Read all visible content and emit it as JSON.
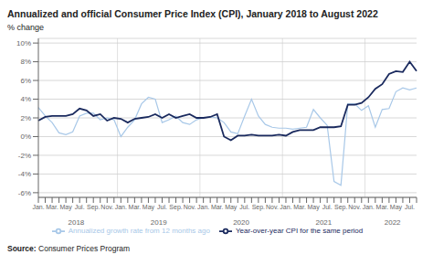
{
  "chart_data": {
    "type": "line",
    "title": "Annualized and official Consumer Price Index (CPI), January 2018 to August 2022",
    "ylabel": "% change",
    "source": "Source: Consumer Prices Program",
    "categories": [
      "Jan.",
      null,
      "Mar.",
      null,
      "May",
      null,
      "Jul.",
      null,
      "Sep.",
      null,
      "Nov.",
      null,
      "Jan.",
      null,
      "Mar.",
      null,
      "May",
      null,
      "Jul.",
      null,
      "Sep.",
      null,
      "Nov.",
      null,
      "Jan.",
      null,
      "Mar.",
      null,
      "May",
      null,
      "Jul.",
      null,
      "Sep.",
      null,
      "Nov.",
      null,
      "Jan.",
      null,
      "Mar.",
      null,
      "May",
      null,
      "Jul.",
      null,
      "Sep.",
      null,
      "Nov.",
      null,
      "Jan.",
      null,
      "Mar.",
      null,
      "May",
      null,
      "Jul.",
      null
    ],
    "series": [
      {
        "name": "Annualized growth rate from 12 months ago",
        "color": "#a8c8e8",
        "values": [
          3.1,
          2.2,
          1.5,
          0.4,
          0.2,
          0.5,
          2.2,
          2.5,
          2.5,
          1.8,
          2.0,
          1.8,
          0.0,
          1.0,
          1.8,
          3.5,
          4.2,
          4.0,
          1.5,
          1.8,
          2.2,
          1.5,
          1.3,
          1.8,
          2.0,
          2.1,
          2.0,
          1.5,
          0.5,
          0.3,
          2.2,
          4.0,
          2.2,
          1.3,
          1.0,
          0.9,
          0.9,
          0.8,
          0.9,
          1.0,
          2.9,
          2.0,
          1.2,
          -4.8,
          -5.2,
          3.5,
          3.5,
          2.8,
          3.3,
          1.0,
          2.9,
          3.0,
          4.8,
          5.2,
          5.0,
          5.2
        ]
      },
      {
        "name": "Year-over-year CPI for the same period",
        "color": "#1a2a5e",
        "values": [
          1.7,
          2.1,
          2.2,
          2.2,
          2.2,
          2.4,
          3.0,
          2.8,
          2.2,
          2.4,
          1.7,
          2.0,
          1.9,
          1.5,
          1.9,
          2.0,
          2.1,
          2.4,
          2.0,
          2.4,
          2.0,
          2.2,
          2.4,
          2.0,
          2.0,
          2.1,
          2.4,
          0.0,
          -0.4,
          0.1,
          0.1,
          0.2,
          0.1,
          0.1,
          0.1,
          0.2,
          0.1,
          0.5,
          0.7,
          0.7,
          0.7,
          1.0,
          1.0,
          1.0,
          1.1,
          3.4,
          3.4,
          3.6,
          4.2,
          5.1,
          5.6,
          6.7,
          7.0,
          6.9,
          8.0,
          7.0
        ]
      }
    ],
    "ylim": [
      -6.5,
      10.5
    ],
    "yticks": [
      {
        "value": -6,
        "label": "-6%"
      },
      {
        "value": -4,
        "label": "-4%"
      },
      {
        "value": -2,
        "label": "-2%"
      },
      {
        "value": 0,
        "label": "0%"
      },
      {
        "value": 2,
        "label": "2%"
      },
      {
        "value": 4,
        "label": "4%"
      },
      {
        "value": 6,
        "label": "6%"
      },
      {
        "value": 8,
        "label": "8%"
      },
      {
        "value": 10,
        "label": "10%"
      }
    ],
    "grid": true,
    "legend": "bottom",
    "annotations": [
      {
        "text": "2018",
        "x": 5.5
      },
      {
        "text": "2019",
        "x": 17.5
      },
      {
        "text": "2020",
        "x": 29.5
      },
      {
        "text": "2021",
        "x": 41.5
      },
      {
        "text": "2022",
        "x": 51.5
      }
    ]
  }
}
